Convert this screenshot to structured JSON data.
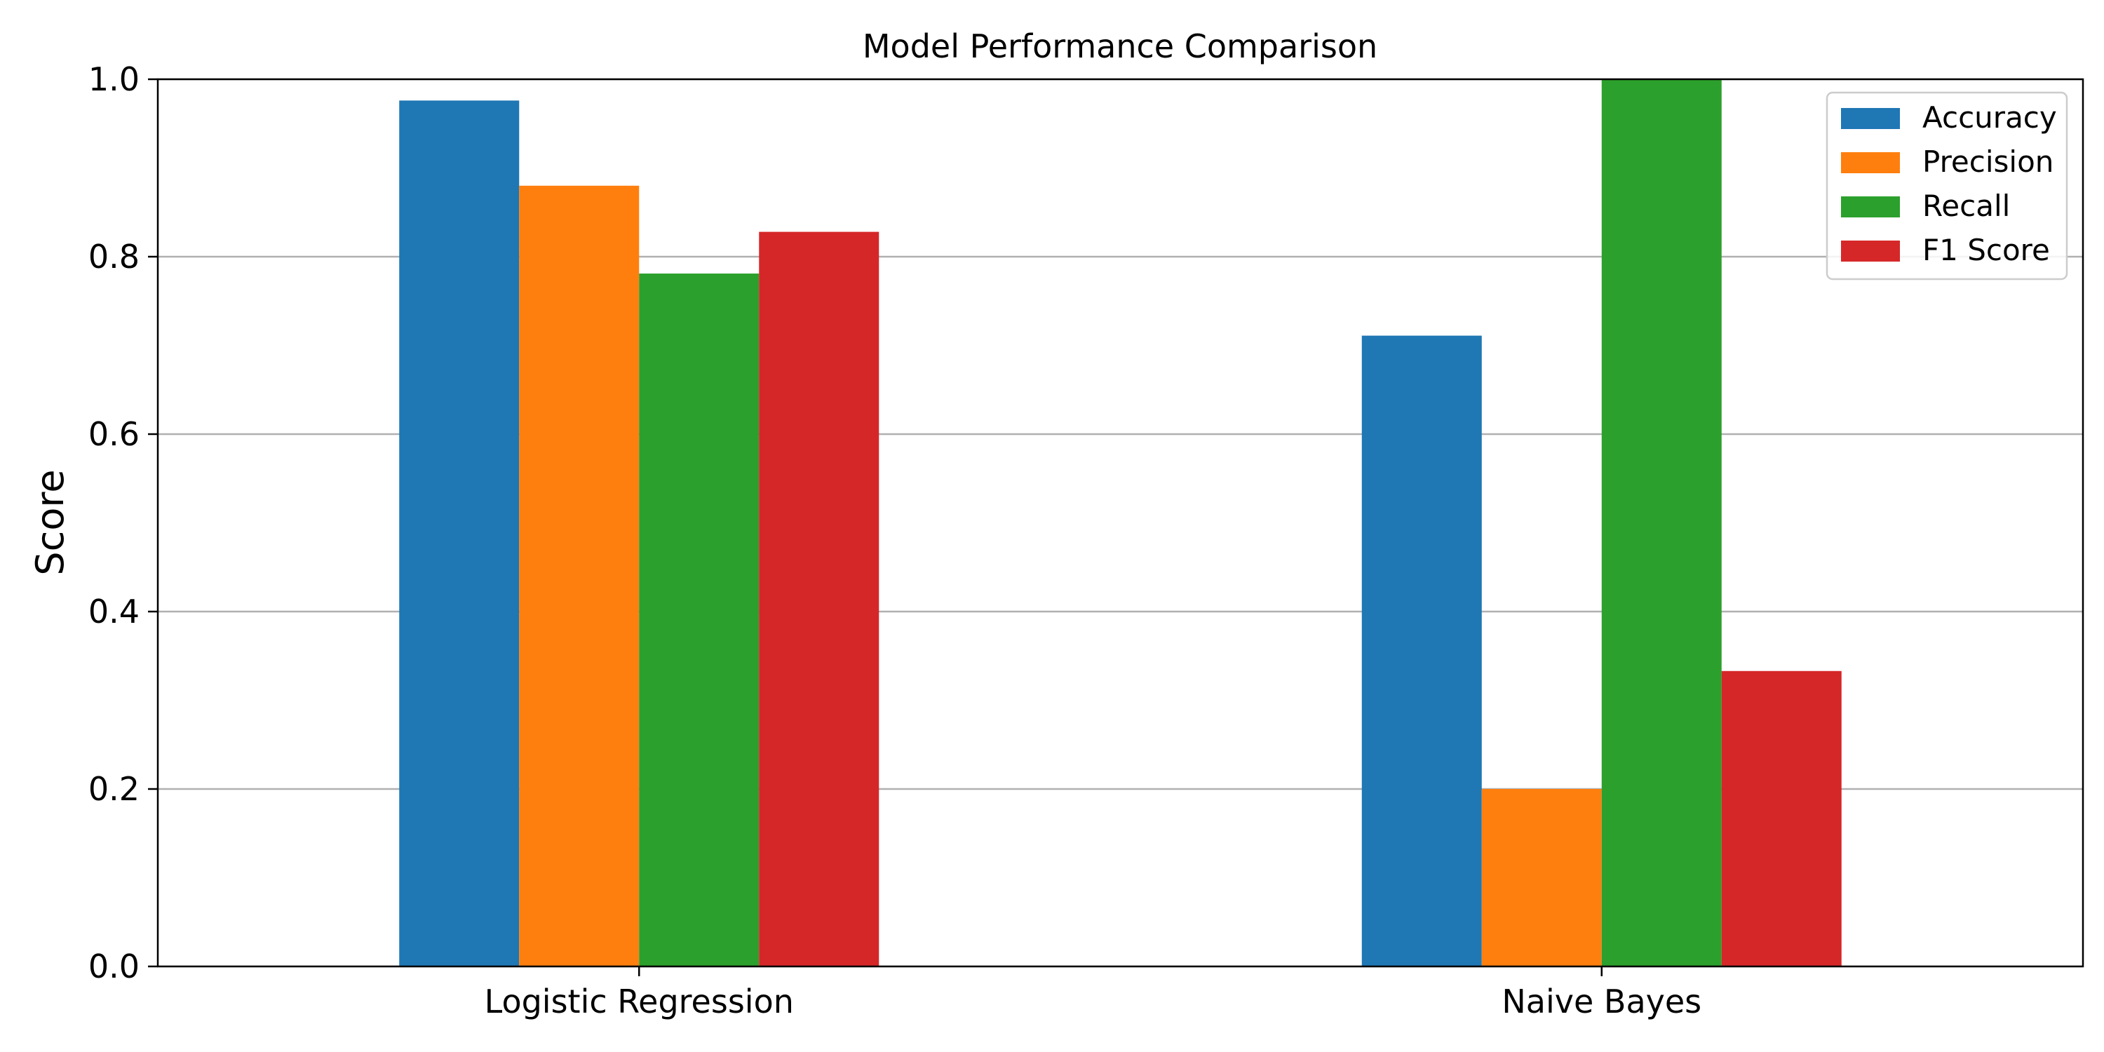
{
  "chart_data": {
    "type": "bar",
    "title": "Model Performance Comparison",
    "xlabel": "",
    "ylabel": "Score",
    "categories": [
      "Logistic Regression",
      "Naive Bayes"
    ],
    "series": [
      {
        "name": "Accuracy",
        "color": "#1f77b4",
        "values": [
          0.976,
          0.711
        ]
      },
      {
        "name": "Precision",
        "color": "#ff7f0e",
        "values": [
          0.88,
          0.2
        ]
      },
      {
        "name": "Recall",
        "color": "#2ca02c",
        "values": [
          0.781,
          1.0
        ]
      },
      {
        "name": "F1 Score",
        "color": "#d62728",
        "values": [
          0.828,
          0.333
        ]
      }
    ],
    "ylim": [
      0,
      1.0
    ],
    "yticks": [
      "0.0",
      "0.2",
      "0.4",
      "0.6",
      "0.8",
      "1.0"
    ],
    "ytick_values": [
      0,
      0.2,
      0.4,
      0.6,
      0.8,
      1.0
    ],
    "grid": "y",
    "legend_position": "top-right"
  }
}
